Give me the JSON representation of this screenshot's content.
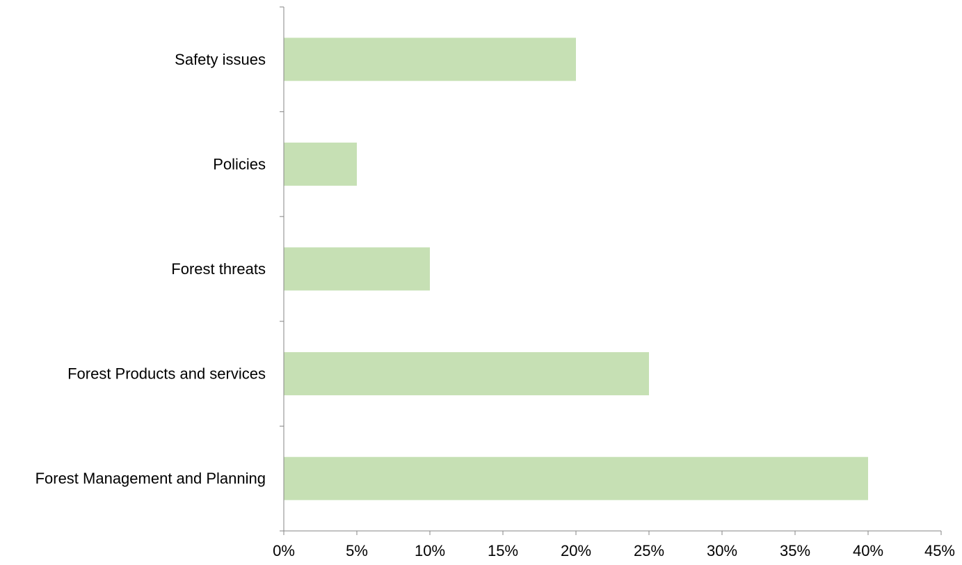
{
  "chart_data": {
    "type": "bar",
    "orientation": "horizontal",
    "categories": [
      "Safety issues",
      "Policies",
      "Forest threats",
      "Forest Products and services",
      "Forest Management and Planning"
    ],
    "values": [
      20,
      5,
      10,
      25,
      40
    ],
    "value_unit": "%",
    "xlim": [
      0,
      45
    ],
    "x_ticks": [
      0,
      5,
      10,
      15,
      20,
      25,
      30,
      35,
      40,
      45
    ],
    "x_tick_labels": [
      "0%",
      "5%",
      "10%",
      "15%",
      "20%",
      "25%",
      "30%",
      "35%",
      "40%",
      "45%"
    ],
    "bar_color": "#c6e0b4",
    "grid": false,
    "legend": "none"
  }
}
